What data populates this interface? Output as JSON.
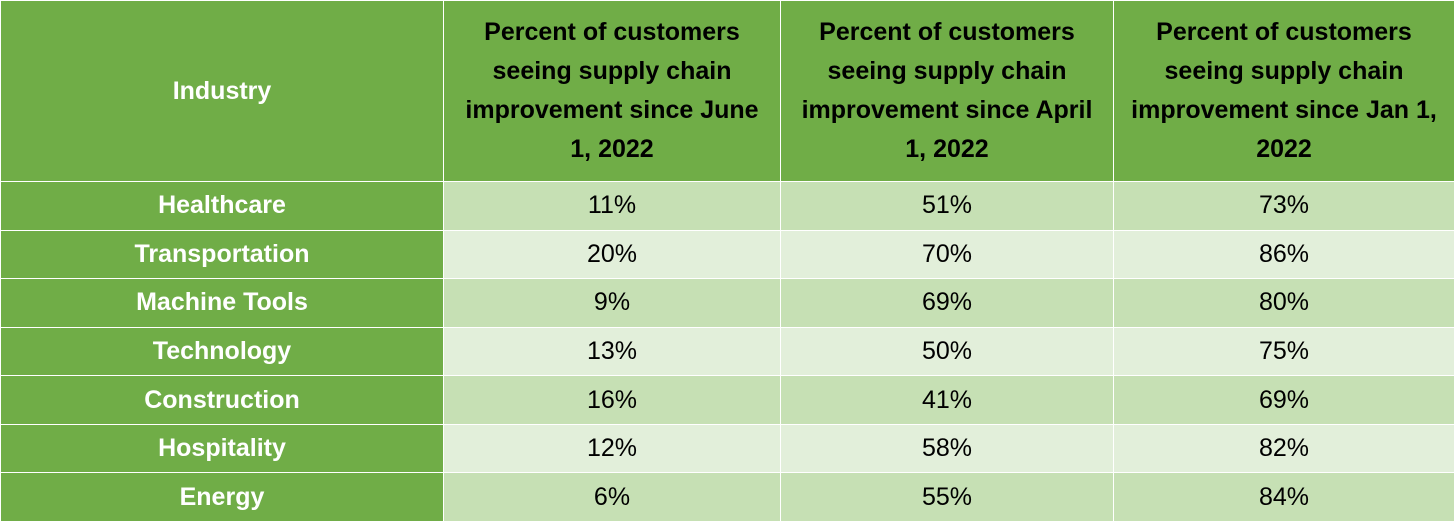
{
  "chart_data": {
    "type": "table",
    "row_header_label": "Industry",
    "columns": [
      "Percent of customers seeing supply chain improvement since June 1, 2022",
      "Percent of customers seeing supply chain improvement since April 1, 2022",
      "Percent of customers seeing supply chain improvement since Jan 1, 2022"
    ],
    "rows": [
      {
        "label": "Healthcare",
        "values": [
          "11%",
          "51%",
          "73%"
        ]
      },
      {
        "label": "Transportation",
        "values": [
          "20%",
          "70%",
          "86%"
        ]
      },
      {
        "label": "Machine Tools",
        "values": [
          "9%",
          "69%",
          "80%"
        ]
      },
      {
        "label": "Technology",
        "values": [
          "13%",
          "50%",
          "75%"
        ]
      },
      {
        "label": "Construction",
        "values": [
          "16%",
          "41%",
          "69%"
        ]
      },
      {
        "label": "Hospitality",
        "values": [
          "12%",
          "58%",
          "82%"
        ]
      },
      {
        "label": "Energy",
        "values": [
          "6%",
          "55%",
          "84%"
        ]
      }
    ]
  },
  "colors": {
    "header": "#70ad47",
    "row_odd": "#c6e0b4",
    "row_even": "#e2efda"
  }
}
